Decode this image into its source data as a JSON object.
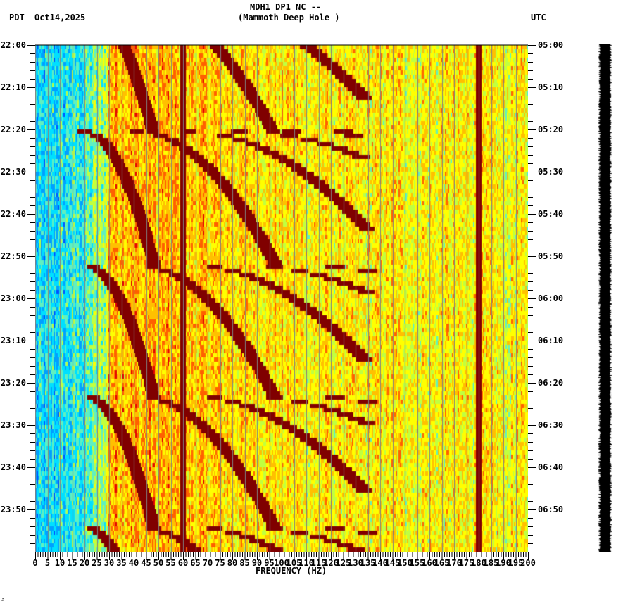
{
  "header": {
    "title_line1": "MDH1 DP1 NC --",
    "title_line2": "(Mammoth Deep Hole )",
    "left_timezone": "PDT",
    "date": "Oct14,2025",
    "right_timezone": "UTC"
  },
  "footer_mark": "∴",
  "colors": {
    "background": "#ffffff",
    "axis": "#000000",
    "gridline": "#808080",
    "trace": "#000000",
    "colormap": [
      "#0050ff",
      "#00a0ff",
      "#00e0ff",
      "#60f0c0",
      "#c0ff40",
      "#ffff00",
      "#ffc000",
      "#ff6000",
      "#e00000",
      "#800000"
    ]
  },
  "chart_data": {
    "type": "heatmap",
    "title": "MDH1 DP1 NC -- (Mammoth Deep Hole )",
    "xlabel": "FREQUENCY (HZ)",
    "ylabel_left": "PDT",
    "ylabel_right": "UTC",
    "xlim": [
      0,
      200
    ],
    "x_ticks": [
      0,
      5,
      10,
      15,
      20,
      25,
      30,
      35,
      40,
      45,
      50,
      55,
      60,
      65,
      70,
      75,
      80,
      85,
      90,
      95,
      100,
      105,
      110,
      115,
      120,
      125,
      130,
      135,
      140,
      145,
      150,
      155,
      160,
      165,
      170,
      175,
      180,
      185,
      190,
      195,
      200
    ],
    "x_minor_tick_step": 1,
    "left_time_labels": [
      "22:00",
      "22:10",
      "22:20",
      "22:30",
      "22:40",
      "22:50",
      "23:00",
      "23:10",
      "23:20",
      "23:30",
      "23:40",
      "23:50"
    ],
    "right_time_labels": [
      "05:00",
      "05:10",
      "05:20",
      "05:30",
      "05:40",
      "05:50",
      "06:00",
      "06:10",
      "06:20",
      "06:30",
      "06:40",
      "06:50"
    ],
    "y_minor_tick_minutes": 2,
    "duration_minutes": 120,
    "grid": "vertical gray lines every 5 Hz",
    "features": {
      "persistent_lines_hz": [
        60,
        180
      ],
      "low_frequency_band_hz": [
        0,
        20
      ],
      "low_frequency_level": "low (blue/cyan)",
      "mid_band_hz": [
        20,
        135
      ],
      "mid_band_level": "high (orange/red)",
      "high_band_hz": [
        135,
        200
      ],
      "high_band_level": "medium (yellow/orange)",
      "chirp_sweep_start_minutes": [
        -10,
        20.5,
        52,
        83,
        114
      ],
      "chirp_period_minutes": 31,
      "chirp_harmonic_start_hz": [
        20,
        41,
        62,
        83,
        104,
        125
      ],
      "chirp_notes": "repeating upward-sweeping harmonic chirps (tonal drilling/pump noise), each sweep lasting ~31 minutes"
    }
  }
}
